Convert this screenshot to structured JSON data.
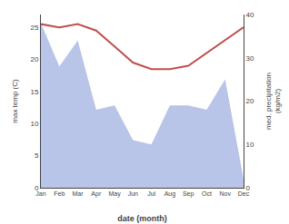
{
  "chart_data": {
    "type": "line",
    "categories": [
      "Jan",
      "Feb",
      "Mar",
      "Apr",
      "May",
      "Jun",
      "Jul",
      "Aug",
      "Sep",
      "Oct",
      "Nov",
      "Dec"
    ],
    "series": [
      {
        "type": "area",
        "axis": "y2",
        "color": "#b8c4e8",
        "values": [
          38,
          28,
          34,
          18,
          19,
          11,
          10,
          19,
          19,
          18,
          25,
          2
        ]
      },
      {
        "type": "line",
        "color": "#c0504d",
        "values": [
          25.5,
          25.0,
          25.5,
          24.5,
          22.0,
          19.5,
          18.5,
          18.5,
          19.0,
          21.0,
          23.0,
          25.0
        ]
      }
    ],
    "xlabel": "date (month)",
    "ylabel": "max temp (C)",
    "y2label": "med. precipitation\n(kg/m2)",
    "ylim": [
      0,
      27
    ],
    "yticks": [
      0,
      5,
      10,
      15,
      20,
      25
    ],
    "y2lim": [
      0,
      40
    ],
    "y2ticks": [
      0,
      10,
      20,
      30,
      40
    ],
    "grid": false
  }
}
